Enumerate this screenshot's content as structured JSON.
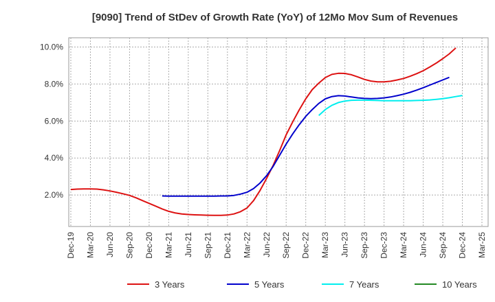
{
  "chart_data": {
    "type": "line",
    "title": "[9090]  Trend of StDev of Growth Rate (YoY) of 12Mo Mov Sum of Revenues",
    "xlabel": "",
    "ylabel": "",
    "ylim": [
      0.3,
      10.5
    ],
    "yticks": [
      2.0,
      4.0,
      6.0,
      8.0,
      10.0
    ],
    "ytick_labels": [
      "2.0%",
      "4.0%",
      "6.0%",
      "8.0%",
      "10.0%"
    ],
    "x_tick_labels": [
      "Dec-19",
      "Mar-20",
      "Jun-20",
      "Sep-20",
      "Dec-20",
      "Mar-21",
      "Jun-21",
      "Sep-21",
      "Dec-21",
      "Mar-22",
      "Jun-22",
      "Sep-22",
      "Dec-22",
      "Mar-23",
      "Jun-23",
      "Sep-23",
      "Dec-23",
      "Mar-24",
      "Jun-24",
      "Sep-24",
      "Dec-24",
      "Mar-25"
    ],
    "grid": true,
    "legend_position": "bottom",
    "series": [
      {
        "name": "3 Years",
        "color": "#dd1111",
        "start_index": 0,
        "values": [
          2.3,
          2.32,
          2.33,
          2.33,
          2.32,
          2.28,
          2.22,
          2.15,
          2.07,
          1.98,
          1.85,
          1.7,
          1.55,
          1.4,
          1.25,
          1.12,
          1.03,
          0.98,
          0.95,
          0.93,
          0.92,
          0.91,
          0.9,
          0.9,
          0.92,
          0.98,
          1.1,
          1.3,
          1.7,
          2.25,
          2.9,
          3.6,
          4.4,
          5.25,
          5.95,
          6.6,
          7.2,
          7.7,
          8.05,
          8.35,
          8.52,
          8.58,
          8.57,
          8.5,
          8.38,
          8.25,
          8.16,
          8.12,
          8.12,
          8.15,
          8.22,
          8.3,
          8.42,
          8.56,
          8.72,
          8.92,
          9.13,
          9.37,
          9.63,
          9.95
        ]
      },
      {
        "name": "5 Years",
        "color": "#0000cc",
        "start_index": 14,
        "values": [
          1.95,
          1.94,
          1.94,
          1.94,
          1.94,
          1.94,
          1.94,
          1.94,
          1.94,
          1.95,
          1.95,
          1.98,
          2.05,
          2.15,
          2.35,
          2.65,
          3.05,
          3.55,
          4.15,
          4.75,
          5.3,
          5.8,
          6.25,
          6.62,
          6.95,
          7.2,
          7.32,
          7.37,
          7.35,
          7.3,
          7.25,
          7.22,
          7.21,
          7.22,
          7.25,
          7.3,
          7.37,
          7.45,
          7.55,
          7.67,
          7.8,
          7.94,
          8.08,
          8.22,
          8.36
        ]
      },
      {
        "name": "7 Years",
        "color": "#00eeee",
        "start_index": 38,
        "values": [
          6.3,
          6.62,
          6.85,
          7.0,
          7.08,
          7.12,
          7.13,
          7.13,
          7.12,
          7.11,
          7.1,
          7.1,
          7.1,
          7.1,
          7.1,
          7.11,
          7.12,
          7.14,
          7.17,
          7.21,
          7.26,
          7.32,
          7.38
        ]
      },
      {
        "name": "10 Years",
        "color": "#228822",
        "start_index": 0,
        "values": []
      }
    ]
  }
}
